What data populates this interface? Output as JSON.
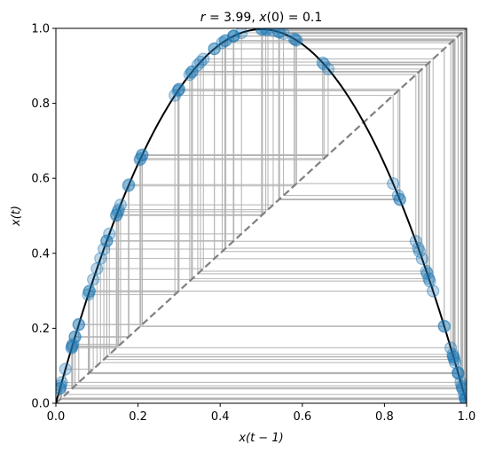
{
  "chart_data": {
    "type": "line",
    "title": "r = 3.99, x(0) = 0.1",
    "title_parts": {
      "r_label": "r",
      "r_value": " = 3.99, ",
      "x0_label": "x",
      "x0_value": "(0) = 0.1"
    },
    "xlabel": "x(t − 1)",
    "ylabel": "x(t)",
    "xlim": [
      0,
      1
    ],
    "ylim": [
      0,
      1
    ],
    "x_ticks": [
      "0.0",
      "0.2",
      "0.4",
      "0.6",
      "0.8",
      "1.0"
    ],
    "y_ticks": [
      "0.0",
      "0.2",
      "0.4",
      "0.6",
      "0.8",
      "1.0"
    ],
    "r": 3.99,
    "x0": 0.1,
    "iterations": 100,
    "series": [
      {
        "values": "r*x*(1-x), 0<=x<=1",
        "style": "solid",
        "color": "#000000"
      },
      {
        "values": "y = x",
        "style": "dashed",
        "color": "#808080"
      }
    ],
    "cobweb_color": "#808080",
    "point_color": "#1f77b4",
    "grid": false
  }
}
